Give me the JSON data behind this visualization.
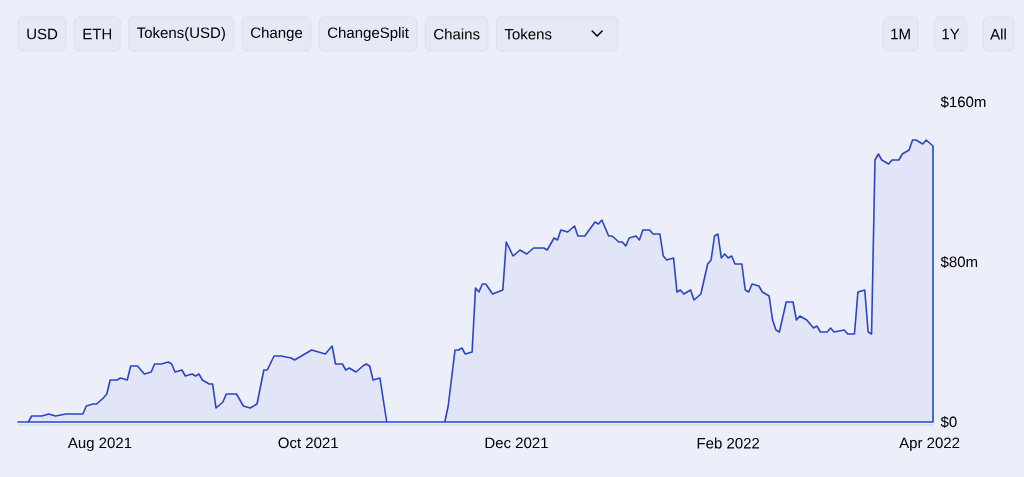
{
  "chart_data": {
    "type": "area",
    "annotations": [
      "USD",
      "ETH",
      "Tokens(USD)",
      "Change",
      "ChangeSplit",
      "Chains",
      "Tokens",
      "1M",
      "1Y",
      "All"
    ],
    "xlim": [
      "2021-07-08",
      "2022-04-02"
    ],
    "xticks": [
      {
        "value": "2021-08-01",
        "label": "Aug 2021"
      },
      {
        "value": "2021-10-01",
        "label": "Oct 2021"
      },
      {
        "value": "2021-12-01",
        "label": "Dec 2021"
      },
      {
        "value": "2022-02-01",
        "label": "Feb 2022"
      },
      {
        "value": "2022-04-01",
        "label": "Apr 2022"
      }
    ],
    "ylim": [
      0,
      160
    ],
    "yticks": [
      {
        "value": 0,
        "label": "$0"
      },
      {
        "value": 80,
        "label": "$80m"
      },
      {
        "value": 160,
        "label": "$160m"
      }
    ],
    "grid": false,
    "x": [
      "2021-07-08",
      "2021-07-11",
      "2021-07-12",
      "2021-07-15",
      "2021-07-17",
      "2021-07-19",
      "2021-07-22",
      "2021-07-27",
      "2021-07-28",
      "2021-07-30",
      "2021-07-31",
      "2021-08-02",
      "2021-08-03",
      "2021-08-04",
      "2021-08-06",
      "2021-08-07",
      "2021-08-09",
      "2021-08-10",
      "2021-08-12",
      "2021-08-14",
      "2021-08-16",
      "2021-08-17",
      "2021-08-18",
      "2021-08-19",
      "2021-08-21",
      "2021-08-22",
      "2021-08-23",
      "2021-08-25",
      "2021-08-26",
      "2021-08-28",
      "2021-08-29",
      "2021-08-30",
      "2021-08-31",
      "2021-09-02",
      "2021-09-03",
      "2021-09-04",
      "2021-09-06",
      "2021-09-07",
      "2021-09-09",
      "2021-09-10",
      "2021-09-12",
      "2021-09-14",
      "2021-09-16",
      "2021-09-18",
      "2021-09-19",
      "2021-09-21",
      "2021-09-23",
      "2021-09-26",
      "2021-09-27",
      "2021-09-30",
      "2021-10-02",
      "2021-10-04",
      "2021-10-06",
      "2021-10-08",
      "2021-10-09",
      "2021-10-11",
      "2021-10-12",
      "2021-10-13",
      "2021-10-15",
      "2021-10-17",
      "2021-10-18",
      "2021-10-19",
      "2021-10-20",
      "2021-10-22",
      "2021-10-24",
      "2021-11-10",
      "2021-11-11",
      "2021-11-13",
      "2021-11-14",
      "2021-11-15",
      "2021-11-16",
      "2021-11-18",
      "2021-11-19",
      "2021-11-20",
      "2021-11-21",
      "2021-11-22",
      "2021-11-24",
      "2021-11-27",
      "2021-11-28",
      "2021-11-30",
      "2021-12-02",
      "2021-12-04",
      "2021-12-06",
      "2021-12-09",
      "2021-12-10",
      "2021-12-12",
      "2021-12-13",
      "2021-12-14",
      "2021-12-16",
      "2021-12-18",
      "2021-12-19",
      "2021-12-21",
      "2021-12-24",
      "2021-12-25",
      "2021-12-26",
      "2021-12-28",
      "2021-12-29",
      "2021-12-31",
      "2022-01-01",
      "2022-01-02",
      "2022-01-03",
      "2022-01-05",
      "2022-01-06",
      "2022-01-07",
      "2022-01-09",
      "2022-01-10",
      "2022-01-12",
      "2022-01-13",
      "2022-01-14",
      "2022-01-16",
      "2022-01-17",
      "2022-01-18",
      "2022-01-19",
      "2022-01-21",
      "2022-01-22",
      "2022-01-24",
      "2022-01-26",
      "2022-01-27",
      "2022-01-28",
      "2022-01-29",
      "2022-01-30",
      "2022-01-31",
      "2022-02-01",
      "2022-02-02",
      "2022-02-03",
      "2022-02-05",
      "2022-02-06",
      "2022-02-07",
      "2022-02-08",
      "2022-02-10",
      "2022-02-11",
      "2022-02-13",
      "2022-02-14",
      "2022-02-15",
      "2022-02-16",
      "2022-02-18",
      "2022-02-20",
      "2022-02-21",
      "2022-02-22",
      "2022-02-24",
      "2022-02-26",
      "2022-02-27",
      "2022-02-28",
      "2022-03-02",
      "2022-03-03",
      "2022-03-04",
      "2022-03-07",
      "2022-03-08",
      "2022-03-10",
      "2022-03-11",
      "2022-03-13",
      "2022-03-14",
      "2022-03-15",
      "2022-03-16",
      "2022-03-17",
      "2022-03-18",
      "2022-03-20",
      "2022-03-21",
      "2022-03-23",
      "2022-03-24",
      "2022-03-26",
      "2022-03-27",
      "2022-03-28",
      "2022-03-30",
      "2022-03-31",
      "2022-04-02"
    ],
    "series": [
      {
        "color": "#2a45c9",
        "values": [
          0,
          0,
          3,
          3,
          4,
          3,
          4,
          4,
          8,
          9,
          9,
          12,
          14,
          21,
          21,
          22,
          21,
          28,
          28,
          24,
          25,
          29,
          29,
          29,
          30,
          29,
          25,
          26,
          23,
          24,
          23,
          24,
          21,
          19,
          19,
          7,
          10,
          14,
          14,
          14,
          8,
          7,
          9,
          26,
          26,
          33,
          33,
          32,
          31,
          34,
          36,
          35,
          34,
          38,
          29,
          29,
          26,
          27,
          25,
          28,
          29,
          28,
          21,
          22,
          0,
          0,
          8,
          36,
          36,
          37,
          34,
          35,
          67,
          65,
          69,
          69,
          64,
          66,
          90,
          83,
          86,
          84,
          87,
          87,
          86,
          92,
          91,
          96,
          95,
          98,
          93,
          93,
          100,
          99,
          101,
          93,
          93,
          90,
          90,
          88,
          92,
          93,
          91,
          96,
          96,
          94,
          94,
          83,
          81,
          82,
          65,
          66,
          64,
          66,
          61,
          64,
          79,
          81,
          93,
          94,
          82,
          84,
          82,
          83,
          79,
          79,
          66,
          65,
          69,
          68,
          65,
          63,
          51,
          46,
          45,
          60,
          60,
          51,
          53,
          51,
          47,
          48,
          45,
          45,
          47,
          45,
          46,
          44,
          44,
          65,
          66,
          45,
          44,
          131,
          134,
          131,
          129,
          131,
          131,
          134,
          136,
          141,
          141,
          139,
          141,
          138
        ]
      }
    ]
  }
}
